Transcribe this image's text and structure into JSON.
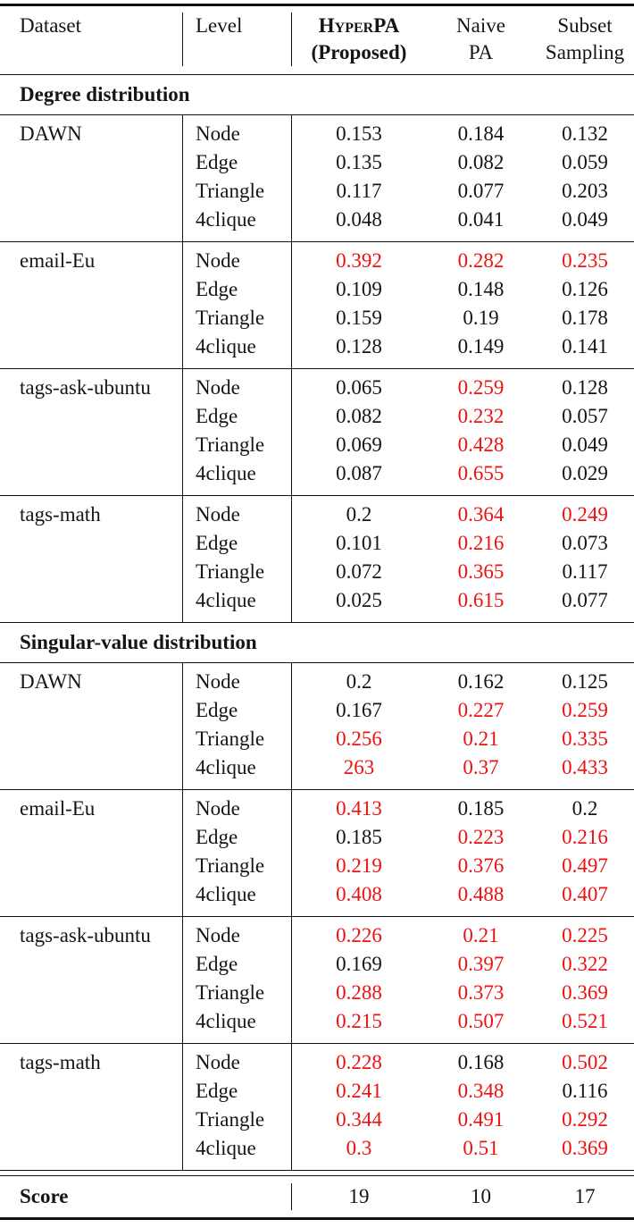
{
  "page": {
    "background": "#ffffff",
    "text_color": "#151515",
    "highlight_color": "#ee1111"
  },
  "header": {
    "col_dataset": "Dataset",
    "col_level": "Level",
    "method1": {
      "line1_smallcaps": "Hyper",
      "line1_rest": "PA",
      "line2": "(Proposed)"
    },
    "method2": {
      "line1": "Naive",
      "line2": "PA"
    },
    "method3": {
      "line1": "Subset",
      "line2": "Sampling"
    }
  },
  "sections": [
    {
      "title": "Degree distribution",
      "groups": [
        {
          "dataset": "DAWN",
          "rows": [
            {
              "level": "Node",
              "values": [
                "0.153",
                "0.184",
                "0.132"
              ],
              "red": [
                false,
                false,
                false
              ]
            },
            {
              "level": "Edge",
              "values": [
                "0.135",
                "0.082",
                "0.059"
              ],
              "red": [
                false,
                false,
                false
              ]
            },
            {
              "level": "Triangle",
              "values": [
                "0.117",
                "0.077",
                "0.203"
              ],
              "red": [
                false,
                false,
                false
              ]
            },
            {
              "level": "4clique",
              "values": [
                "0.048",
                "0.041",
                "0.049"
              ],
              "red": [
                false,
                false,
                false
              ]
            }
          ]
        },
        {
          "dataset": "email-Eu",
          "rows": [
            {
              "level": "Node",
              "values": [
                "0.392",
                "0.282",
                "0.235"
              ],
              "red": [
                true,
                true,
                true
              ]
            },
            {
              "level": "Edge",
              "values": [
                "0.109",
                "0.148",
                "0.126"
              ],
              "red": [
                false,
                false,
                false
              ]
            },
            {
              "level": "Triangle",
              "values": [
                "0.159",
                "0.19",
                "0.178"
              ],
              "red": [
                false,
                false,
                false
              ]
            },
            {
              "level": "4clique",
              "values": [
                "0.128",
                "0.149",
                "0.141"
              ],
              "red": [
                false,
                false,
                false
              ]
            }
          ]
        },
        {
          "dataset": "tags-ask-ubuntu",
          "rows": [
            {
              "level": "Node",
              "values": [
                "0.065",
                "0.259",
                "0.128"
              ],
              "red": [
                false,
                true,
                false
              ]
            },
            {
              "level": "Edge",
              "values": [
                "0.082",
                "0.232",
                "0.057"
              ],
              "red": [
                false,
                true,
                false
              ]
            },
            {
              "level": "Triangle",
              "values": [
                "0.069",
                "0.428",
                "0.049"
              ],
              "red": [
                false,
                true,
                false
              ]
            },
            {
              "level": "4clique",
              "values": [
                "0.087",
                "0.655",
                "0.029"
              ],
              "red": [
                false,
                true,
                false
              ]
            }
          ]
        },
        {
          "dataset": "tags-math",
          "rows": [
            {
              "level": "Node",
              "values": [
                "0.2",
                "0.364",
                "0.249"
              ],
              "red": [
                false,
                true,
                true
              ]
            },
            {
              "level": "Edge",
              "values": [
                "0.101",
                "0.216",
                "0.073"
              ],
              "red": [
                false,
                true,
                false
              ]
            },
            {
              "level": "Triangle",
              "values": [
                "0.072",
                "0.365",
                "0.117"
              ],
              "red": [
                false,
                true,
                false
              ]
            },
            {
              "level": "4clique",
              "values": [
                "0.025",
                "0.615",
                "0.077"
              ],
              "red": [
                false,
                true,
                false
              ]
            }
          ]
        }
      ]
    },
    {
      "title": "Singular-value distribution",
      "groups": [
        {
          "dataset": "DAWN",
          "rows": [
            {
              "level": "Node",
              "values": [
                "0.2",
                "0.162",
                "0.125"
              ],
              "red": [
                false,
                false,
                false
              ]
            },
            {
              "level": "Edge",
              "values": [
                "0.167",
                "0.227",
                "0.259"
              ],
              "red": [
                false,
                true,
                true
              ]
            },
            {
              "level": "Triangle",
              "values": [
                "0.256",
                "0.21",
                "0.335"
              ],
              "red": [
                true,
                true,
                true
              ]
            },
            {
              "level": "4clique",
              "values": [
                "263",
                "0.37",
                "0.433"
              ],
              "red": [
                true,
                true,
                true
              ]
            }
          ]
        },
        {
          "dataset": "email-Eu",
          "rows": [
            {
              "level": "Node",
              "values": [
                "0.413",
                "0.185",
                "0.2"
              ],
              "red": [
                true,
                false,
                false
              ]
            },
            {
              "level": "Edge",
              "values": [
                "0.185",
                "0.223",
                "0.216"
              ],
              "red": [
                false,
                true,
                true
              ]
            },
            {
              "level": "Triangle",
              "values": [
                "0.219",
                "0.376",
                "0.497"
              ],
              "red": [
                true,
                true,
                true
              ]
            },
            {
              "level": "4clique",
              "values": [
                "0.408",
                "0.488",
                "0.407"
              ],
              "red": [
                true,
                true,
                true
              ]
            }
          ]
        },
        {
          "dataset": "tags-ask-ubuntu",
          "rows": [
            {
              "level": "Node",
              "values": [
                "0.226",
                "0.21",
                "0.225"
              ],
              "red": [
                true,
                true,
                true
              ]
            },
            {
              "level": "Edge",
              "values": [
                "0.169",
                "0.397",
                "0.322"
              ],
              "red": [
                false,
                true,
                true
              ]
            },
            {
              "level": "Triangle",
              "values": [
                "0.288",
                "0.373",
                "0.369"
              ],
              "red": [
                true,
                true,
                true
              ]
            },
            {
              "level": "4clique",
              "values": [
                "0.215",
                "0.507",
                "0.521"
              ],
              "red": [
                true,
                true,
                true
              ]
            }
          ]
        },
        {
          "dataset": "tags-math",
          "rows": [
            {
              "level": "Node",
              "values": [
                "0.228",
                "0.168",
                "0.502"
              ],
              "red": [
                true,
                false,
                true
              ]
            },
            {
              "level": "Edge",
              "values": [
                "0.241",
                "0.348",
                "0.116"
              ],
              "red": [
                true,
                true,
                false
              ]
            },
            {
              "level": "Triangle",
              "values": [
                "0.344",
                "0.491",
                "0.292"
              ],
              "red": [
                true,
                true,
                true
              ]
            },
            {
              "level": "4clique",
              "values": [
                "0.3",
                "0.51",
                "0.369"
              ],
              "red": [
                true,
                true,
                true
              ]
            }
          ]
        }
      ]
    }
  ],
  "score": {
    "label": "Score",
    "values": [
      "19",
      "10",
      "17"
    ]
  },
  "chart_data": {
    "type": "table",
    "columns": [
      "Dataset",
      "Level",
      "HyperPA (Proposed)",
      "Naive PA",
      "Subset Sampling"
    ],
    "score_row": [
      "Score",
      "",
      "19",
      "10",
      "17"
    ]
  }
}
